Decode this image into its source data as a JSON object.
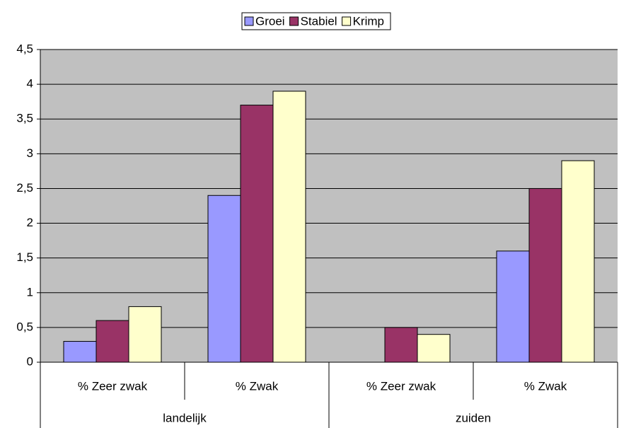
{
  "chart_data": {
    "type": "bar",
    "groups": [
      {
        "label": "landelijk",
        "categories": [
          "% Zeer zwak",
          "% Zwak"
        ]
      },
      {
        "label": "zuiden",
        "categories": [
          "% Zeer zwak",
          "% Zwak"
        ]
      }
    ],
    "series": [
      {
        "name": "Groei",
        "color": "#9999ff",
        "values": [
          0.3,
          2.4,
          0,
          1.6
        ]
      },
      {
        "name": "Stabiel",
        "color": "#993366",
        "values": [
          0.6,
          3.7,
          0.5,
          2.5
        ]
      },
      {
        "name": "Krimp",
        "color": "#ffffcc",
        "values": [
          0.8,
          3.9,
          0.4,
          2.9
        ]
      }
    ],
    "ylim": [
      0,
      4.5
    ],
    "yticks": [
      0,
      {
        "value": 0.5,
        "label": "0,5"
      },
      1,
      {
        "value": 1.5,
        "label": "1,5"
      },
      2,
      {
        "value": 2.5,
        "label": "2,5"
      },
      3,
      {
        "value": 3.5,
        "label": "3,5"
      },
      4,
      {
        "value": 4.5,
        "label": "4,5"
      }
    ],
    "grid": true,
    "plot_background": "#c0c0c0",
    "legend": "top"
  }
}
